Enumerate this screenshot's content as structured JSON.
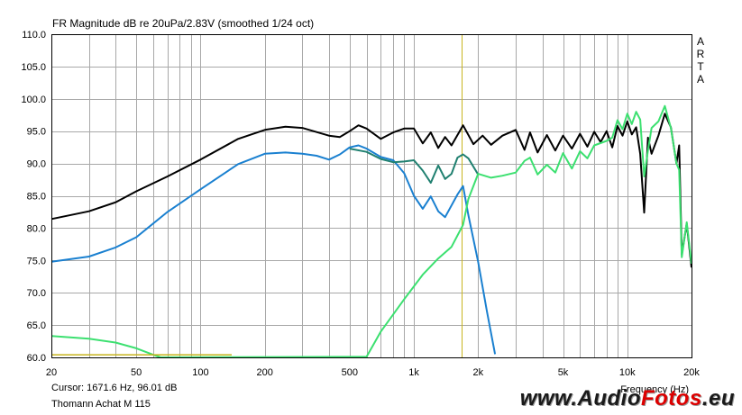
{
  "chart_data": {
    "type": "line",
    "title": "FR Magnitude dB re 20uPa/2.83V (smoothed 1/24 oct)",
    "xlabel": "Frequency (Hz)",
    "ylabel": "",
    "xscale": "log",
    "xlim": [
      20,
      20000
    ],
    "ylim": [
      60,
      110
    ],
    "grid": true,
    "x_tick_labels": [
      {
        "value": 20,
        "label": "20"
      },
      {
        "value": 50,
        "label": "50"
      },
      {
        "value": 100,
        "label": "100"
      },
      {
        "value": 200,
        "label": "200"
      },
      {
        "value": 500,
        "label": "500"
      },
      {
        "value": 1000,
        "label": "1k"
      },
      {
        "value": 2000,
        "label": "2k"
      },
      {
        "value": 5000,
        "label": "5k"
      },
      {
        "value": 10000,
        "label": "10k"
      },
      {
        "value": 20000,
        "label": "20k"
      }
    ],
    "y_ticks": [
      60,
      65,
      70,
      75,
      80,
      85,
      90,
      95,
      100,
      105,
      110
    ],
    "y_tick_labels": [
      "60.0",
      "65.0",
      "70.0",
      "75.0",
      "80.0",
      "85.0",
      "90.0",
      "95.0",
      "100.0",
      "105.0",
      "110.0"
    ],
    "cursor": {
      "x": 1671.6,
      "color": "#c8b41e"
    },
    "series": [
      {
        "color": "#000000",
        "points": [
          [
            20,
            81.4
          ],
          [
            30,
            82.6
          ],
          [
            40,
            84
          ],
          [
            50,
            85.7
          ],
          [
            70,
            88
          ],
          [
            100,
            90.6
          ],
          [
            150,
            93.8
          ],
          [
            200,
            95.2
          ],
          [
            250,
            95.7
          ],
          [
            300,
            95.5
          ],
          [
            400,
            94.3
          ],
          [
            450,
            94.1
          ],
          [
            500,
            95
          ],
          [
            550,
            95.9
          ],
          [
            600,
            95.4
          ],
          [
            700,
            93.8
          ],
          [
            800,
            94.8
          ],
          [
            900,
            95.4
          ],
          [
            1000,
            95.4
          ],
          [
            1100,
            93.1
          ],
          [
            1200,
            94.8
          ],
          [
            1300,
            92.4
          ],
          [
            1400,
            94.1
          ],
          [
            1500,
            92.8
          ],
          [
            1700,
            95.9
          ],
          [
            1900,
            93
          ],
          [
            2100,
            94.3
          ],
          [
            2300,
            92.9
          ],
          [
            2600,
            94.3
          ],
          [
            3000,
            95.2
          ],
          [
            3300,
            92.1
          ],
          [
            3500,
            94.8
          ],
          [
            3800,
            91.7
          ],
          [
            4200,
            94.4
          ],
          [
            4600,
            92
          ],
          [
            5000,
            94.3
          ],
          [
            5500,
            92.3
          ],
          [
            6000,
            94.6
          ],
          [
            6500,
            92.6
          ],
          [
            7000,
            94.9
          ],
          [
            7500,
            93.3
          ],
          [
            8000,
            95
          ],
          [
            8500,
            92.5
          ],
          [
            9000,
            95.8
          ],
          [
            9500,
            94.3
          ],
          [
            10000,
            96.5
          ],
          [
            10500,
            94.5
          ],
          [
            11000,
            95.6
          ],
          [
            11500,
            91.5
          ],
          [
            12000,
            82.4
          ],
          [
            12500,
            94
          ],
          [
            13000,
            91.5
          ],
          [
            14000,
            94.3
          ],
          [
            15000,
            97.7
          ],
          [
            16000,
            95.6
          ],
          [
            17000,
            90
          ],
          [
            17500,
            92.8
          ],
          [
            18000,
            75.9
          ],
          [
            19000,
            80.7
          ],
          [
            20000,
            73.9
          ]
        ]
      },
      {
        "color": "#1a80d0",
        "points": [
          [
            20,
            74.8
          ],
          [
            30,
            75.6
          ],
          [
            40,
            77
          ],
          [
            50,
            78.6
          ],
          [
            70,
            82.5
          ],
          [
            100,
            86
          ],
          [
            150,
            89.9
          ],
          [
            200,
            91.5
          ],
          [
            250,
            91.7
          ],
          [
            300,
            91.5
          ],
          [
            350,
            91.2
          ],
          [
            400,
            90.6
          ],
          [
            450,
            91.4
          ],
          [
            500,
            92.5
          ],
          [
            550,
            92.8
          ],
          [
            600,
            92.3
          ],
          [
            700,
            91
          ],
          [
            800,
            90.5
          ],
          [
            900,
            88.5
          ],
          [
            1000,
            85
          ],
          [
            1100,
            83
          ],
          [
            1200,
            84.9
          ],
          [
            1300,
            82.6
          ],
          [
            1400,
            81.7
          ],
          [
            1600,
            85.2
          ],
          [
            1700,
            86.5
          ],
          [
            1800,
            82
          ],
          [
            2000,
            74.8
          ],
          [
            2200,
            67.1
          ],
          [
            2400,
            60.5
          ]
        ]
      },
      {
        "color": "#208070",
        "points": [
          [
            500,
            92.3
          ],
          [
            600,
            91.8
          ],
          [
            700,
            90.7
          ],
          [
            800,
            90.2
          ],
          [
            900,
            90.3
          ],
          [
            1000,
            90.5
          ],
          [
            1100,
            88.9
          ],
          [
            1200,
            87
          ],
          [
            1300,
            89.7
          ],
          [
            1400,
            87.6
          ],
          [
            1500,
            88.4
          ],
          [
            1600,
            90.9
          ],
          [
            1700,
            91.4
          ],
          [
            1800,
            90.8
          ],
          [
            2000,
            88.3
          ]
        ]
      },
      {
        "color": "#3ce070",
        "points": [
          [
            20,
            63.3
          ],
          [
            30,
            62.9
          ],
          [
            40,
            62.3
          ],
          [
            50,
            61.4
          ],
          [
            60,
            60.4
          ],
          [
            65,
            59.8
          ],
          [
            600,
            60.1
          ],
          [
            700,
            64
          ],
          [
            900,
            69
          ],
          [
            1100,
            72.8
          ],
          [
            1300,
            75.3
          ],
          [
            1500,
            77.1
          ],
          [
            1700,
            80.5
          ],
          [
            1800,
            84.5
          ],
          [
            2000,
            88.4
          ],
          [
            2300,
            87.8
          ],
          [
            2600,
            88.1
          ],
          [
            3000,
            88.6
          ],
          [
            3300,
            90.4
          ],
          [
            3500,
            90.9
          ],
          [
            3800,
            88.3
          ],
          [
            4200,
            89.8
          ],
          [
            4600,
            88.6
          ],
          [
            5000,
            91.6
          ],
          [
            5500,
            89.2
          ],
          [
            6000,
            91.9
          ],
          [
            6500,
            90.8
          ],
          [
            7000,
            92.8
          ],
          [
            8000,
            93.5
          ],
          [
            8500,
            94
          ],
          [
            9000,
            96.7
          ],
          [
            9500,
            95.3
          ],
          [
            10000,
            97.7
          ],
          [
            10500,
            96.1
          ],
          [
            11000,
            98
          ],
          [
            11500,
            96.8
          ],
          [
            12000,
            88
          ],
          [
            12500,
            92
          ],
          [
            13000,
            95.5
          ],
          [
            14000,
            96.5
          ],
          [
            15000,
            98.9
          ],
          [
            16000,
            95.5
          ],
          [
            17000,
            90
          ],
          [
            17500,
            89
          ],
          [
            18000,
            75.5
          ],
          [
            19000,
            80.9
          ],
          [
            20000,
            74.5
          ]
        ]
      },
      {
        "color": "#c8b41e",
        "points": [
          [
            20,
            60.4
          ],
          [
            140,
            60.4
          ]
        ]
      }
    ],
    "side_label": [
      "A",
      "R",
      "T",
      "A"
    ],
    "readout": "Cursor: 1671.6 Hz, 96.01 dB",
    "device_name": "Thomann Achat M 115"
  },
  "watermark": {
    "prefix": "www.",
    "name_a": "Audio",
    "name_b": "Fotos",
    "suffix": ".eu"
  }
}
